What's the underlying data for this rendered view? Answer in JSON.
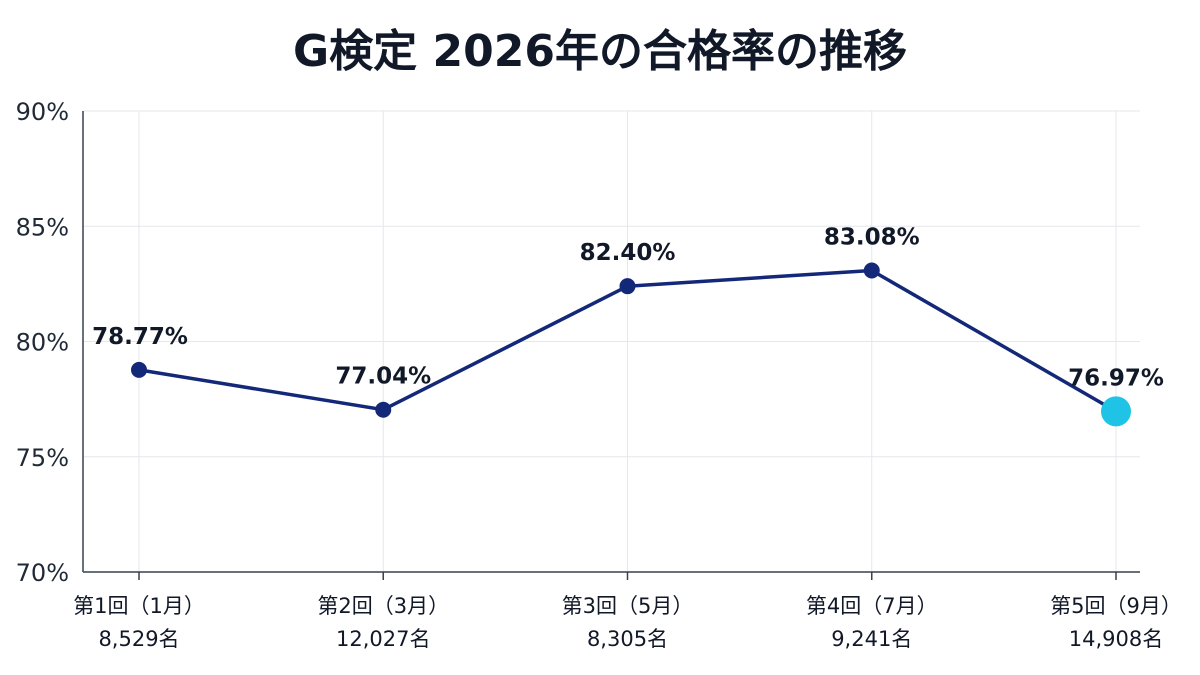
{
  "chart_data": {
    "type": "line",
    "title": "G検定 2026年の合格率の推移",
    "xlabel": "",
    "ylabel": "",
    "categories": [
      "第1回（1月）",
      "第2回（3月）",
      "第3回（5月）",
      "第4回（7月）",
      "第5回（9月）"
    ],
    "category_sublabels": [
      "8,529名",
      "12,027名",
      "8,305名",
      "9,241名",
      "14,908名"
    ],
    "values": [
      78.77,
      77.04,
      82.4,
      83.08,
      76.97
    ],
    "data_labels": [
      "78.77%",
      "77.04%",
      "82.40%",
      "83.08%",
      "76.97%"
    ],
    "ylim": [
      70,
      90
    ],
    "yticks": [
      70,
      75,
      80,
      85,
      90
    ],
    "ytick_labels": [
      "70%",
      "75%",
      "80%",
      "85%",
      "90%"
    ],
    "grid": true,
    "legend": "none",
    "colors": {
      "line": "#14287a",
      "point": "#14287a",
      "highlight_point": "#1ec3e6",
      "grid": "#e5e7eb",
      "axis": "#374151"
    },
    "highlight_index": 4
  }
}
